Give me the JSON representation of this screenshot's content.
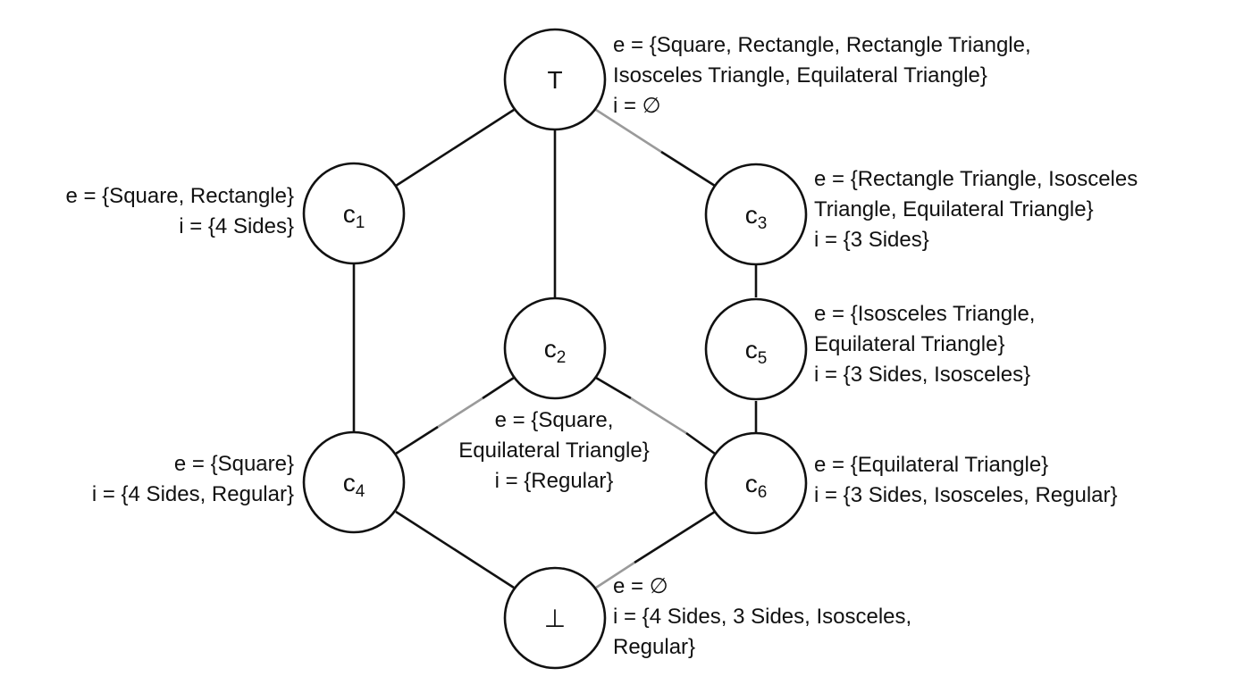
{
  "nodes": {
    "top": {
      "symbol": "T"
    },
    "c1": {
      "letter": "c",
      "index": "1"
    },
    "c2": {
      "letter": "c",
      "index": "2"
    },
    "c3": {
      "letter": "c",
      "index": "3"
    },
    "c4": {
      "letter": "c",
      "index": "4"
    },
    "c5": {
      "letter": "c",
      "index": "5"
    },
    "c6": {
      "letter": "c",
      "index": "6"
    },
    "bottom": {
      "symbol": "⊥"
    }
  },
  "labels": {
    "top": [
      "e = {Square, Rectangle, Rectangle Triangle,",
      "Isosceles Triangle, Equilateral Triangle}",
      "i = ∅"
    ],
    "c1": [
      "e = {Square, Rectangle}",
      "i = {4 Sides}"
    ],
    "c2": [
      "e = {Square,",
      "Equilateral Triangle}",
      "i = {Regular}"
    ],
    "c3": [
      "e = {Rectangle Triangle, Isosceles",
      "Triangle, Equilateral Triangle}",
      "i = {3 Sides}"
    ],
    "c4": [
      "e = {Square}",
      "i = {4 Sides, Regular}"
    ],
    "c5": [
      "e = {Isosceles Triangle,",
      "Equilateral Triangle}",
      "i = {3 Sides, Isosceles}"
    ],
    "c6": [
      "e = {Equilateral Triangle}",
      "i = {3 Sides, Isosceles, Regular}"
    ],
    "bottom": [
      "e = ∅",
      "i = {4 Sides, 3 Sides, Isosceles,",
      "Regular}"
    ]
  }
}
